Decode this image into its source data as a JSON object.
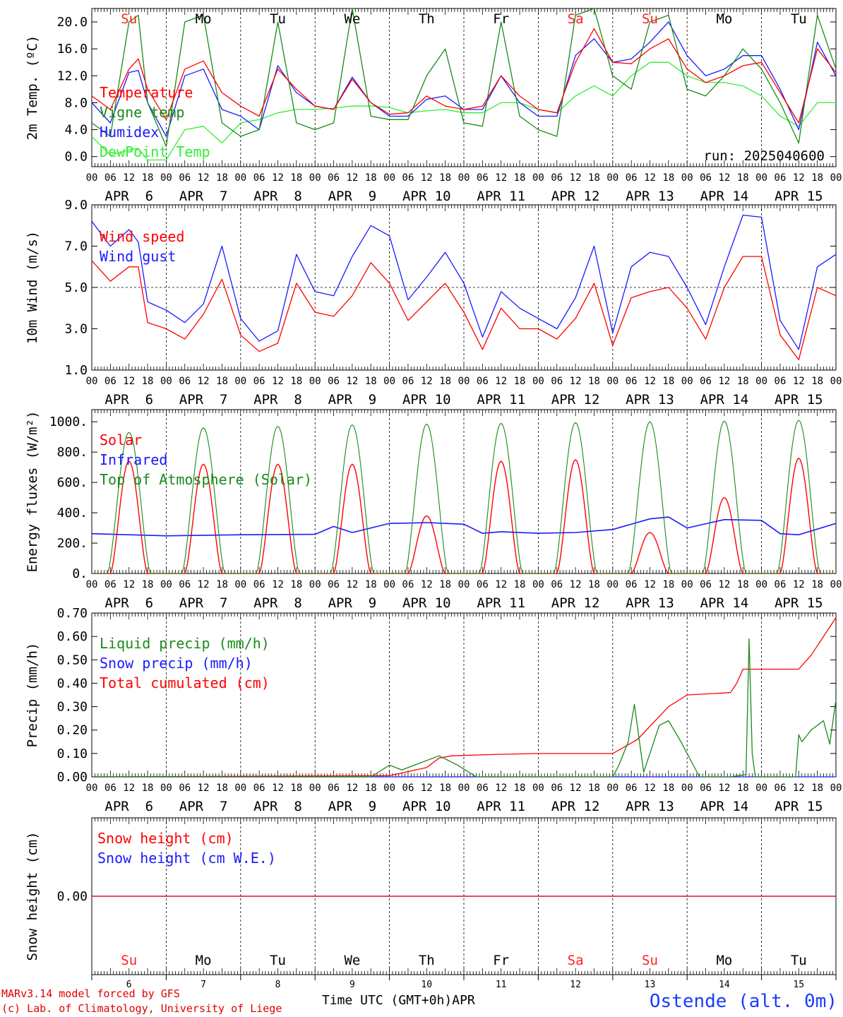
{
  "run_label": "run: 2025040600",
  "footer": {
    "model": "MARv3.14 model forced by GFS",
    "credit": "(c) Lab. of Climatology, University of Liege",
    "time_axis": "Time UTC (GMT+0h)",
    "month": "APR",
    "station": "Ostende (alt. 0m)"
  },
  "colors": {
    "red": "#ff0000",
    "darkgreen": "#1a8a1a",
    "blue": "#1a1aff",
    "lightgreen": "#33ee33",
    "weekend": "#ff2020"
  },
  "days": {
    "names": [
      "Su",
      "Mo",
      "Tu",
      "We",
      "Th",
      "Fr",
      "Sa",
      "Su",
      "Mo",
      "Tu"
    ],
    "weekend": [
      true,
      false,
      false,
      false,
      false,
      false,
      true,
      true,
      false,
      false
    ],
    "labels": [
      "APR  6",
      "APR  7",
      "APR  8",
      "APR  9",
      "APR 10",
      "APR 11",
      "APR 12",
      "APR 13",
      "APR 14",
      "APR 15"
    ],
    "numbers": [
      "6",
      "7",
      "8",
      "9",
      "10",
      "11",
      "12",
      "13",
      "14",
      "15"
    ],
    "hour_ticks": [
      "00",
      "06",
      "12",
      "18"
    ],
    "end_tick": "00"
  },
  "chart_data": [
    {
      "type": "line",
      "ylabel": "2m Temp. (ºC)",
      "ylim": [
        -1.5,
        22
      ],
      "yticks": [
        "0.0",
        "4.0",
        "8.0",
        "12.0",
        "16.0",
        "20.0"
      ],
      "ytick_values": [
        0,
        4,
        8,
        12,
        16,
        20
      ],
      "x_unit": "hours since APR 6 00 UTC",
      "grid": "vertical dashed at 00 UTC each day",
      "series": [
        {
          "name": "Temperature",
          "color": "red",
          "x": [
            0,
            6,
            12,
            15,
            18,
            24,
            30,
            36,
            42,
            48,
            54,
            60,
            66,
            72,
            78,
            84,
            90,
            96,
            102,
            108,
            114,
            120,
            126,
            132,
            138,
            144,
            150,
            156,
            162,
            168,
            174,
            180,
            186,
            192,
            198,
            204,
            210,
            216,
            222,
            228,
            234,
            240
          ],
          "y": [
            9,
            7,
            13,
            14.5,
            10,
            5.5,
            13,
            14.2,
            9.5,
            7.5,
            6,
            13,
            10,
            7.5,
            7,
            11.5,
            8,
            6.3,
            6.5,
            9,
            7.5,
            7,
            7.5,
            12,
            9,
            7,
            6.5,
            14,
            19,
            14,
            13.8,
            16,
            17.5,
            13,
            11,
            12,
            13.5,
            14,
            9.5,
            5,
            16,
            12.5
          ]
        },
        {
          "name": "Vigne temp",
          "color": "darkgreen",
          "x": [
            0,
            6,
            12,
            15,
            18,
            24,
            30,
            36,
            42,
            48,
            54,
            60,
            66,
            72,
            78,
            84,
            90,
            96,
            102,
            108,
            114,
            120,
            126,
            132,
            138,
            144,
            150,
            156,
            162,
            168,
            174,
            180,
            186,
            192,
            198,
            204,
            210,
            216,
            222,
            228,
            234,
            240
          ],
          "y": [
            5,
            3,
            20,
            21,
            8,
            1.5,
            20,
            21,
            5,
            3,
            4,
            20,
            5,
            4,
            5,
            22,
            6,
            5.5,
            5.5,
            12,
            16,
            5,
            4.5,
            20,
            6,
            4,
            3,
            21,
            22,
            12,
            10,
            20,
            21,
            10,
            9,
            12,
            16,
            13,
            8,
            2,
            21,
            13
          ]
        },
        {
          "name": "Humidex",
          "color": "blue",
          "x": [
            0,
            6,
            12,
            15,
            18,
            24,
            30,
            36,
            42,
            48,
            54,
            60,
            66,
            72,
            78,
            84,
            90,
            96,
            102,
            108,
            114,
            120,
            126,
            132,
            138,
            144,
            150,
            156,
            162,
            168,
            174,
            180,
            186,
            192,
            198,
            204,
            210,
            216,
            222,
            228,
            234,
            240
          ],
          "y": [
            8,
            5,
            12.5,
            12.8,
            8,
            3,
            12,
            13,
            7,
            6,
            4,
            13.5,
            9.5,
            7.5,
            7,
            11.8,
            8,
            6,
            6,
            8.5,
            9,
            7,
            7,
            12,
            8,
            6,
            6,
            15,
            17.5,
            14,
            14.5,
            17,
            20,
            15,
            12,
            13,
            15,
            15,
            10,
            4,
            17,
            12
          ]
        },
        {
          "name": "DewPoint Temp",
          "color": "lightgreen",
          "x": [
            0,
            6,
            12,
            15,
            18,
            24,
            30,
            36,
            42,
            48,
            54,
            60,
            66,
            72,
            78,
            84,
            90,
            96,
            102,
            108,
            114,
            120,
            126,
            132,
            138,
            144,
            150,
            156,
            162,
            168,
            174,
            180,
            186,
            192,
            198,
            204,
            210,
            216,
            222,
            228,
            234,
            240
          ],
          "y": [
            3,
            0.2,
            1,
            1.2,
            -0.5,
            -0.5,
            4,
            4.5,
            2,
            5,
            5.5,
            6.5,
            7,
            7,
            7.2,
            7.5,
            7.5,
            7.3,
            6.5,
            6.8,
            7,
            6.5,
            6.5,
            8,
            8,
            7,
            6.5,
            9,
            10.5,
            9,
            12,
            14,
            14,
            12,
            11,
            11,
            10.5,
            9,
            6,
            4.5,
            8,
            8
          ]
        }
      ]
    },
    {
      "type": "line",
      "ylabel": "10m Wind (m/s)",
      "ylim": [
        1,
        9
      ],
      "yticks": [
        "1.0",
        "3.0",
        "5.0",
        "7.0",
        "9.0"
      ],
      "ytick_values": [
        1,
        3,
        5,
        7,
        9
      ],
      "reference_line": 5,
      "grid": "vertical dashed at 00 UTC each day",
      "series": [
        {
          "name": "Wind speed",
          "color": "red",
          "x": [
            0,
            6,
            12,
            15,
            18,
            24,
            30,
            36,
            42,
            48,
            54,
            60,
            66,
            72,
            78,
            84,
            90,
            96,
            102,
            108,
            114,
            120,
            126,
            132,
            138,
            144,
            150,
            156,
            162,
            168,
            174,
            180,
            186,
            192,
            198,
            204,
            210,
            216,
            222,
            228,
            234,
            240
          ],
          "y": [
            6.3,
            5.3,
            6,
            6,
            3.3,
            3,
            2.5,
            3.7,
            5.4,
            2.7,
            1.9,
            2.3,
            5.2,
            3.8,
            3.6,
            4.6,
            6.2,
            5.2,
            3.4,
            4.3,
            5.2,
            3.8,
            2,
            4,
            3,
            3,
            2.5,
            3.5,
            5.2,
            2.2,
            4.5,
            4.8,
            5,
            4,
            2.5,
            5,
            6.5,
            6.5,
            2.7,
            1.5,
            5,
            4.6
          ]
        },
        {
          "name": "Wind gust",
          "color": "blue",
          "x": [
            0,
            6,
            12,
            15,
            18,
            24,
            30,
            36,
            42,
            48,
            54,
            60,
            66,
            72,
            78,
            84,
            90,
            96,
            102,
            108,
            114,
            120,
            126,
            132,
            138,
            144,
            150,
            156,
            162,
            168,
            174,
            180,
            186,
            192,
            198,
            204,
            210,
            216,
            222,
            228,
            234,
            240
          ],
          "y": [
            8.2,
            7,
            7.8,
            7.2,
            4.3,
            3.9,
            3.3,
            4.2,
            7,
            3.5,
            2.4,
            2.9,
            6.6,
            4.8,
            4.6,
            6.5,
            8,
            7.5,
            4.4,
            5.5,
            6.7,
            5.2,
            2.6,
            4.8,
            4,
            3.5,
            3,
            4.5,
            7,
            2.8,
            6,
            6.7,
            6.5,
            5,
            3.2,
            6,
            8.5,
            8.4,
            3.4,
            2,
            6,
            6.6
          ]
        }
      ]
    },
    {
      "type": "line",
      "ylabel": "Energy fluxes (W/m²)",
      "ylim": [
        0,
        1080
      ],
      "yticks": [
        "0.",
        "200.",
        "400.",
        "600.",
        "800.",
        "1000."
      ],
      "ytick_values": [
        0,
        200,
        400,
        600,
        800,
        1000
      ],
      "grid": "vertical dashed at 00 UTC each day",
      "series": [
        {
          "name": "Solar",
          "color": "red",
          "diurnal_peaks": [
            740,
            720,
            720,
            720,
            380,
            740,
            750,
            270,
            500,
            760
          ]
        },
        {
          "name": "Infrared",
          "color": "blue",
          "x": [
            0,
            24,
            48,
            72,
            78,
            84,
            96,
            102,
            108,
            120,
            126,
            132,
            144,
            156,
            168,
            180,
            186,
            192,
            204,
            216,
            222,
            228,
            240
          ],
          "y": [
            262,
            248,
            255,
            258,
            310,
            270,
            330,
            332,
            335,
            325,
            265,
            275,
            265,
            270,
            290,
            360,
            372,
            300,
            355,
            350,
            262,
            255,
            330
          ]
        },
        {
          "name": "Top of Atmosphere (Solar)",
          "color": "darkgreen",
          "diurnal_peaks": [
            930,
            960,
            970,
            980,
            985,
            990,
            995,
            1000,
            1005,
            1010
          ]
        }
      ]
    },
    {
      "type": "line",
      "ylabel": "Precip (mm/h)",
      "ylim": [
        0,
        0.7
      ],
      "yticks": [
        "0.00",
        "0.10",
        "0.20",
        "0.30",
        "0.40",
        "0.50",
        "0.60",
        "0.70"
      ],
      "ytick_values": [
        0,
        0.1,
        0.2,
        0.3,
        0.4,
        0.5,
        0.6,
        0.7
      ],
      "grid": "vertical dashed at 00 UTC each day",
      "series": [
        {
          "name": "Liquid precip (mm/h)",
          "color": "darkgreen",
          "x": [
            0,
            90,
            96,
            100,
            106,
            112,
            118,
            124,
            168,
            170,
            173,
            175,
            178,
            183,
            186,
            190,
            196,
            206,
            211,
            212,
            213,
            214,
            218,
            227,
            228,
            229,
            232,
            236,
            238,
            240
          ],
          "y": [
            0,
            0,
            0.05,
            0.03,
            0.06,
            0.09,
            0.05,
            0,
            0,
            0.05,
            0.15,
            0.31,
            0.02,
            0.22,
            0.24,
            0.15,
            0,
            0,
            0.01,
            0.59,
            0.1,
            0,
            0,
            0,
            0.18,
            0.15,
            0.2,
            0.24,
            0.14,
            0.33
          ]
        },
        {
          "name": "Snow precip (mm/h)",
          "color": "blue",
          "x": [
            0,
            240
          ],
          "y": [
            0,
            0
          ]
        },
        {
          "name": "Total cumulated (cm)",
          "color": "red",
          "x": [
            0,
            96,
            108,
            112,
            116,
            128,
            144,
            168,
            176,
            186,
            192,
            206,
            208,
            210,
            216,
            224,
            228,
            232,
            240
          ],
          "y": [
            0,
            0.005,
            0.04,
            0.08,
            0.09,
            0.095,
            0.1,
            0.1,
            0.16,
            0.3,
            0.35,
            0.36,
            0.4,
            0.46,
            0.46,
            0.46,
            0.46,
            0.52,
            0.68
          ]
        }
      ]
    },
    {
      "type": "line",
      "ylabel": "Snow height (cm)",
      "ylim": [
        -1,
        1
      ],
      "yticks": [
        "0.00"
      ],
      "ytick_values": [
        0
      ],
      "series": [
        {
          "name": "Snow height (cm)",
          "color": "red",
          "x": [
            0,
            240
          ],
          "y": [
            0,
            0
          ]
        },
        {
          "name": "Snow height (cm W.E.)",
          "color": "blue",
          "x": [
            0,
            240
          ],
          "y": [
            0,
            0
          ]
        }
      ]
    }
  ]
}
